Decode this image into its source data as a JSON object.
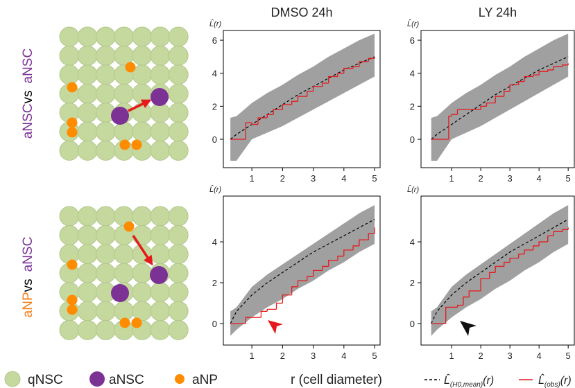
{
  "chart_data": [
    {
      "type": "line",
      "title": "DMSO 24h",
      "ylabel": "L̂(r)",
      "x": [
        0.3,
        0.5,
        1,
        1.5,
        2,
        2.5,
        3,
        3.5,
        4,
        4.5,
        5
      ],
      "band": {
        "upper": [
          1.3,
          1.4,
          2.2,
          2.8,
          3.3,
          3.9,
          4.4,
          5.0,
          5.5,
          6.0,
          6.4
        ],
        "lower": [
          -1.3,
          -1.3,
          0,
          0.4,
          0.8,
          1.3,
          1.8,
          2.3,
          2.8,
          3.3,
          3.8
        ],
        "color": "#a0a0a0"
      },
      "series": [
        {
          "color": "#000000",
          "dash": true,
          "values": [
            0,
            0.3,
            0.9,
            1.5,
            2.1,
            2.7,
            3.2,
            3.7,
            4.2,
            4.6,
            5.0
          ]
        },
        {
          "color": "#e41a1c",
          "step": true,
          "x": [
            0.3,
            0.8,
            1.0,
            1.2,
            1.5,
            1.7,
            2.0,
            2.3,
            2.5,
            2.8,
            3.0,
            3.3,
            3.5,
            3.8,
            4.0,
            4.3,
            4.5,
            4.8,
            5.0
          ],
          "values": [
            0,
            1.0,
            0.9,
            1.3,
            1.5,
            1.8,
            2.1,
            2.3,
            2.6,
            2.9,
            3.2,
            3.4,
            3.8,
            4.0,
            4.3,
            4.4,
            4.7,
            4.9,
            5.0
          ]
        }
      ],
      "xlim": [
        0.07,
        5.18
      ],
      "ylim": [
        -1.72,
        6.59
      ],
      "xticks": [
        1,
        2,
        3,
        4,
        5
      ],
      "yticks": [
        0,
        2,
        4,
        6
      ]
    },
    {
      "type": "line",
      "title": "LY 24h",
      "ylabel": "L̂(r)",
      "x": [
        0.3,
        0.5,
        1,
        1.5,
        2,
        2.5,
        3,
        3.5,
        4,
        4.5,
        5
      ],
      "band": {
        "upper": [
          1.3,
          1.4,
          2.2,
          2.8,
          3.3,
          3.9,
          4.4,
          5.0,
          5.5,
          6.0,
          6.4
        ],
        "lower": [
          -1.3,
          -1.3,
          0,
          0.4,
          0.8,
          1.3,
          1.8,
          2.3,
          2.8,
          3.3,
          3.8
        ],
        "color": "#a0a0a0"
      },
      "series": [
        {
          "color": "#000000",
          "dash": true,
          "values": [
            0,
            0.3,
            0.9,
            1.5,
            2.1,
            2.7,
            3.2,
            3.7,
            4.2,
            4.6,
            5.0
          ]
        },
        {
          "color": "#e41a1c",
          "step": true,
          "x": [
            0.3,
            0.9,
            1.0,
            1.2,
            1.9,
            2.0,
            2.2,
            2.5,
            2.8,
            3.0,
            3.3,
            3.5,
            3.8,
            4.0,
            4.3,
            4.5,
            4.8,
            5.0
          ],
          "values": [
            0,
            1.4,
            1.5,
            1.8,
            1.8,
            2.0,
            2.2,
            2.6,
            2.9,
            3.3,
            3.5,
            3.8,
            3.9,
            4.1,
            4.2,
            4.4,
            4.5,
            4.6
          ]
        }
      ],
      "xlim": [
        -0.05,
        5.21
      ],
      "ylim": [
        -1.72,
        6.59
      ],
      "xticks": [
        1,
        2,
        3,
        4,
        5
      ],
      "yticks": [
        0,
        2,
        4,
        6
      ]
    },
    {
      "type": "line",
      "ylabel": "L̂(r)",
      "x": [
        0.3,
        0.5,
        1,
        1.5,
        2,
        2.5,
        3,
        3.5,
        4,
        4.5,
        5
      ],
      "band": {
        "upper": [
          0.6,
          0.8,
          1.8,
          2.4,
          2.9,
          3.4,
          3.9,
          4.4,
          4.9,
          5.4,
          5.8
        ],
        "lower": [
          -0.6,
          -0.3,
          0.3,
          0.8,
          1.2,
          1.7,
          2.1,
          2.6,
          3.0,
          3.5,
          3.9
        ],
        "color": "#a0a0a0"
      },
      "series": [
        {
          "color": "#000000",
          "dash": true,
          "values": [
            0,
            0.6,
            1.4,
            2.0,
            2.5,
            3.0,
            3.5,
            3.9,
            4.3,
            4.7,
            5.1
          ]
        },
        {
          "color": "#e41a1c",
          "step": true,
          "x": [
            0.3,
            0.8,
            1.0,
            1.3,
            1.5,
            1.8,
            2.0,
            2.3,
            2.5,
            2.8,
            3.0,
            3.3,
            3.5,
            3.8,
            4.0,
            4.3,
            4.5,
            4.8,
            5.0
          ],
          "values": [
            0,
            0.3,
            0.3,
            0.6,
            0.7,
            1.0,
            1.4,
            1.8,
            2.1,
            2.3,
            2.6,
            2.8,
            3.1,
            3.3,
            3.6,
            3.8,
            4.1,
            4.4,
            4.7
          ]
        }
      ],
      "xlim": [
        0.07,
        5.18
      ],
      "ylim": [
        -1.05,
        6.24
      ],
      "xticks": [
        1,
        2,
        3,
        4,
        5
      ],
      "yticks": [
        0,
        2,
        4
      ]
    },
    {
      "type": "line",
      "ylabel": "L̂(r)",
      "x": [
        0.3,
        0.5,
        1,
        1.5,
        2,
        2.5,
        3,
        3.5,
        4,
        4.5,
        5
      ],
      "band": {
        "upper": [
          0.6,
          0.8,
          1.8,
          2.4,
          2.9,
          3.4,
          3.9,
          4.4,
          4.9,
          5.4,
          5.8
        ],
        "lower": [
          -0.6,
          -0.3,
          0.3,
          0.8,
          1.2,
          1.7,
          2.1,
          2.6,
          3.0,
          3.5,
          3.9
        ],
        "color": "#a0a0a0"
      },
      "series": [
        {
          "color": "#000000",
          "dash": true,
          "values": [
            0,
            0.6,
            1.4,
            2.0,
            2.5,
            3.0,
            3.5,
            3.9,
            4.3,
            4.7,
            5.1
          ]
        },
        {
          "color": "#e41a1c",
          "step": true,
          "x": [
            0.3,
            0.7,
            0.8,
            1.2,
            1.4,
            1.6,
            2.0,
            2.3,
            2.5,
            2.8,
            3.0,
            3.3,
            3.5,
            3.8,
            4.0,
            4.3,
            4.5,
            4.8,
            5.0
          ],
          "values": [
            0,
            0,
            0.8,
            0.9,
            1.3,
            1.6,
            2.2,
            2.5,
            2.8,
            3.0,
            3.2,
            3.4,
            3.6,
            3.8,
            4.0,
            4.3,
            4.5,
            4.6,
            4.7
          ]
        }
      ],
      "xlim": [
        -0.05,
        5.21
      ],
      "ylim": [
        -1.05,
        6.24
      ],
      "xticks": [
        1,
        2,
        3,
        4,
        5
      ],
      "yticks": [
        0,
        2,
        4
      ]
    }
  ],
  "row_labels": [
    {
      "first": "aNSC",
      "sep": "vs",
      "second": "aNSC"
    },
    {
      "first": "aNP",
      "sep": "vs",
      "second": "aNSC"
    }
  ],
  "x_label": "r (cell diameter)",
  "cell_legend": [
    "qNSC",
    "aNSC",
    "aNP"
  ],
  "line_legend": [
    {
      "symbol": "L̂",
      "subscript": "(H0,mean)",
      "suffix": "(r)"
    },
    {
      "symbol": "L̂",
      "subscript": "(obs)",
      "suffix": "(r)"
    }
  ]
}
